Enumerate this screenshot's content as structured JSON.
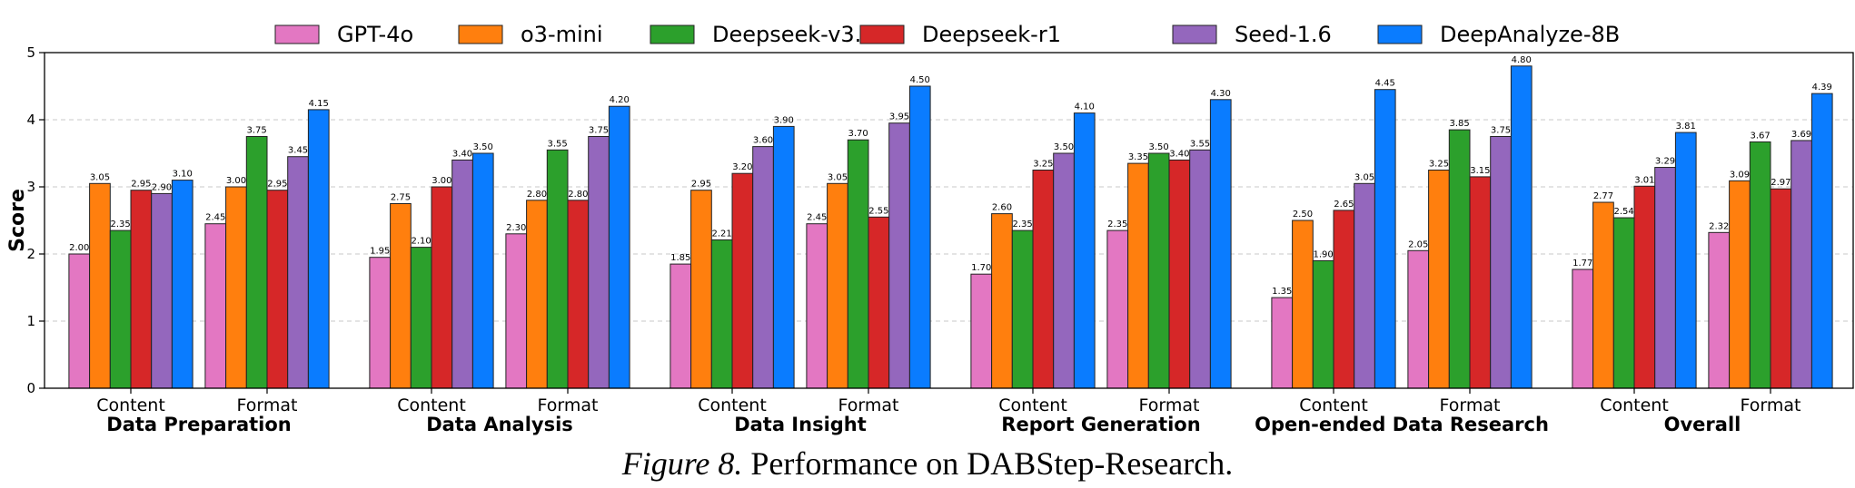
{
  "caption": {
    "figure": "Figure 8.",
    "text": "Performance on DABStep-Research."
  },
  "chart_data": {
    "type": "bar",
    "ylabel": "Score",
    "ylim": [
      0,
      5
    ],
    "yticks": [
      "0",
      "1",
      "2",
      "3",
      "4",
      "5"
    ],
    "grid": true,
    "legend_position": "top-center",
    "groups": [
      "Data Preparation",
      "Data Analysis",
      "Data Insight",
      "Report Generation",
      "Open-ended Data Research",
      "Overall"
    ],
    "subcategories": [
      "Content",
      "Format"
    ],
    "series": [
      {
        "name": "GPT-4o",
        "color": "#e377c2",
        "values": [
          [
            2.0,
            2.45
          ],
          [
            1.95,
            2.3
          ],
          [
            1.85,
            2.45
          ],
          [
            1.7,
            2.35
          ],
          [
            1.35,
            2.05
          ],
          [
            1.77,
            2.32
          ]
        ]
      },
      {
        "name": "o3-mini",
        "color": "#ff7f0e",
        "values": [
          [
            3.05,
            3.0
          ],
          [
            2.75,
            2.8
          ],
          [
            2.95,
            3.05
          ],
          [
            2.6,
            3.35
          ],
          [
            2.5,
            3.25
          ],
          [
            2.77,
            3.09
          ]
        ]
      },
      {
        "name": "Deepseek-v3.1",
        "color": "#2ca02c",
        "values": [
          [
            2.35,
            3.75
          ],
          [
            2.1,
            3.55
          ],
          [
            2.21,
            3.7
          ],
          [
            2.35,
            3.5
          ],
          [
            1.9,
            3.85
          ],
          [
            2.54,
            3.67
          ]
        ]
      },
      {
        "name": "Deepseek-r1",
        "color": "#d62728",
        "values": [
          [
            2.95,
            2.95
          ],
          [
            3.0,
            2.8
          ],
          [
            3.2,
            2.55
          ],
          [
            3.25,
            3.4
          ],
          [
            2.65,
            3.15
          ],
          [
            3.01,
            2.97
          ]
        ]
      },
      {
        "name": "Seed-1.6",
        "color": "#9467bd",
        "values": [
          [
            2.9,
            3.45
          ],
          [
            3.4,
            3.75
          ],
          [
            3.6,
            3.95
          ],
          [
            3.5,
            3.55
          ],
          [
            3.05,
            3.75
          ],
          [
            3.29,
            3.69
          ]
        ]
      },
      {
        "name": "DeepAnalyze-8B",
        "color": "#0a7cff",
        "values": [
          [
            3.1,
            4.15
          ],
          [
            3.5,
            4.2
          ],
          [
            3.9,
            4.5
          ],
          [
            4.1,
            4.3
          ],
          [
            4.45,
            4.8
          ],
          [
            3.81,
            4.39
          ]
        ]
      }
    ]
  }
}
